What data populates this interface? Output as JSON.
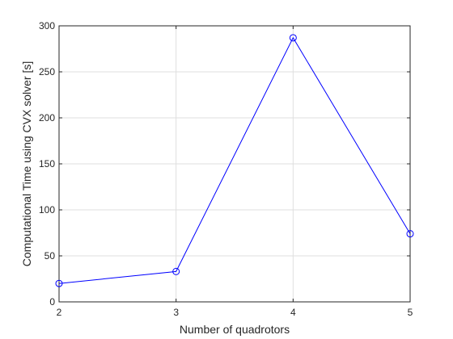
{
  "chart_data": {
    "type": "line",
    "title": "",
    "xlabel": "Number of quadrotors",
    "ylabel": "Computational Time using CVX solver [s]",
    "xlim": [
      2,
      5
    ],
    "ylim": [
      0,
      300
    ],
    "xticks": [
      2,
      3,
      4,
      5
    ],
    "yticks": [
      0,
      50,
      100,
      150,
      200,
      250,
      300
    ],
    "grid": true,
    "series": [
      {
        "color": "#0000ff",
        "marker": "circle",
        "x": [
          2,
          3,
          4,
          5
        ],
        "y": [
          20,
          33,
          287,
          74
        ]
      }
    ]
  }
}
